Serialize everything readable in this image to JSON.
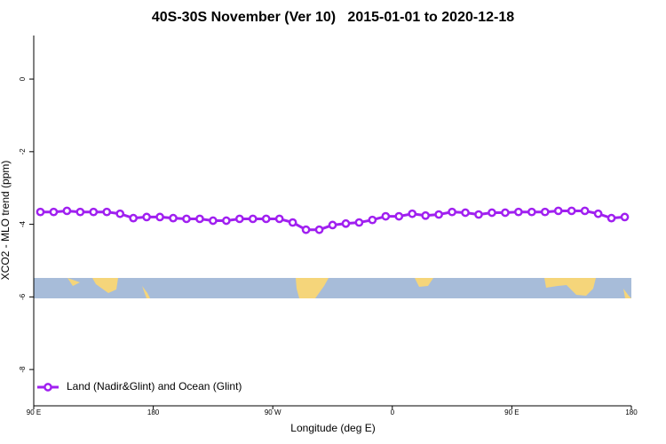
{
  "chart_data": {
    "type": "line",
    "title": "40S-30S November (Ver 10)   2015-01-01 to 2020-12-18",
    "x_label": "Longitude (deg E)",
    "y_label": "XCO2 - MLO trend (ppm)",
    "x": [
      95,
      105,
      115,
      125,
      135,
      145,
      155,
      165,
      175,
      185,
      195,
      205,
      215,
      225,
      235,
      245,
      255,
      265,
      275,
      285,
      295,
      305,
      315,
      325,
      335,
      345,
      355,
      365,
      375,
      385,
      395,
      405,
      415,
      425,
      435,
      445,
      455,
      465,
      475,
      485,
      495,
      505,
      515,
      525,
      535
    ],
    "series": [
      {
        "name": "Land (Nadir&Glint) and Ocean (Glint)",
        "color": "#a020f0",
        "values": [
          -3.66,
          -3.66,
          -3.63,
          -3.66,
          -3.66,
          -3.66,
          -3.71,
          -3.83,
          -3.8,
          -3.8,
          -3.83,
          -3.85,
          -3.85,
          -3.9,
          -3.9,
          -3.85,
          -3.85,
          -3.85,
          -3.85,
          -3.95,
          -4.15,
          -4.15,
          -4.02,
          -3.98,
          -3.95,
          -3.88,
          -3.78,
          -3.78,
          -3.71,
          -3.76,
          -3.73,
          -3.66,
          -3.68,
          -3.73,
          -3.68,
          -3.68,
          -3.66,
          -3.66,
          -3.66,
          -3.63,
          -3.63,
          -3.63,
          -3.71,
          -3.83,
          -3.8
        ]
      }
    ],
    "xlim": [
      90,
      540
    ],
    "ylim": [
      -9,
      1.2
    ],
    "xticks": [
      {
        "value": 90,
        "label": "90 E"
      },
      180,
      {
        "value": 270,
        "label": "90 W"
      },
      {
        "value": 360,
        "label": "0"
      },
      {
        "value": 450,
        "label": "90 E"
      },
      {
        "value": 540,
        "label": "180"
      }
    ],
    "yticks": [
      0,
      -2,
      -4,
      -6,
      -8
    ],
    "legend": "bottom-left"
  }
}
